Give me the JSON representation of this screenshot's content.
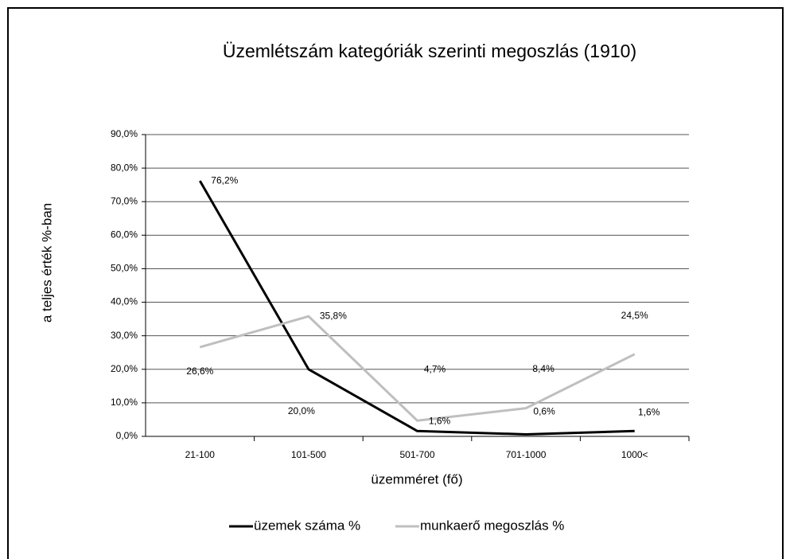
{
  "chart_data": {
    "type": "line",
    "title": "Üzemlétszám kategóriák szerinti megoszlás (1910)",
    "y_label": "a teljes érték %-ban",
    "x_label": "üzemméret (fő)",
    "categories": [
      "21-100",
      "101-500",
      "501-700",
      "701-1000",
      "1000<"
    ],
    "series": [
      {
        "name": "üzemek száma %",
        "color": "#000000",
        "values": [
          76.2,
          20.0,
          1.6,
          0.6,
          1.6
        ],
        "value_labels": [
          "76,2%",
          "20,0%",
          "1,6%",
          "0,6%",
          "1,6%"
        ]
      },
      {
        "name": "munkaerő megoszlás %",
        "color": "#bfbfbf",
        "values": [
          26.6,
          35.8,
          4.7,
          8.4,
          24.5
        ],
        "value_labels": [
          "26,6%",
          "35,8%",
          "4,7%",
          "8,4%",
          "24,5%"
        ]
      }
    ],
    "ylim": [
      0,
      90
    ],
    "yticks": [
      {
        "value": 0,
        "label": "0,0%"
      },
      {
        "value": 10,
        "label": "10,0%"
      },
      {
        "value": 20,
        "label": "20,0%"
      },
      {
        "value": 30,
        "label": "30,0%"
      },
      {
        "value": 40,
        "label": "40,0%"
      },
      {
        "value": 50,
        "label": "50,0%"
      },
      {
        "value": 60,
        "label": "60,0%"
      },
      {
        "value": 70,
        "label": "70,0%"
      },
      {
        "value": 80,
        "label": "80,0%"
      },
      {
        "value": 90,
        "label": "90,0%"
      }
    ],
    "grid": true,
    "legend": "bottom"
  }
}
